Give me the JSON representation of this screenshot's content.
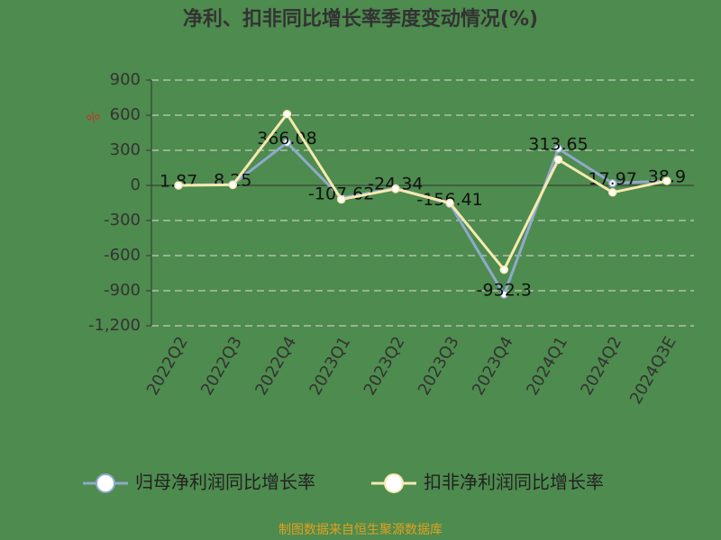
{
  "chart_data": {
    "type": "line",
    "title": "净利、扣非同比增长率季度变动情况(%)",
    "y_unit": "%",
    "source": "制图数据来自恒生聚源数据库",
    "categories": [
      "2022Q2",
      "2022Q3",
      "2022Q4",
      "2023Q1",
      "2023Q2",
      "2023Q3",
      "2023Q4",
      "2024Q1",
      "2024Q2",
      "2024Q3E"
    ],
    "series": [
      {
        "name": "归母净利润同比增长率",
        "color": "#8fa9cc",
        "values": [
          1.87,
          8.25,
          366.08,
          -107.62,
          -24.34,
          -156.41,
          -932.3,
          313.65,
          17.97,
          38.9
        ],
        "show_labels": true
      },
      {
        "name": "扣非净利润同比增长率",
        "color": "#f7e9b0",
        "values": [
          0,
          5,
          610,
          -120,
          -30,
          -150,
          -720,
          220,
          -60,
          38
        ],
        "show_labels": false
      }
    ],
    "ylim": [
      -1200,
      900
    ],
    "yticks": [
      900,
      600,
      300,
      0,
      -300,
      -600,
      -900,
      {
        "value": -1200,
        "label": "-1,200"
      }
    ],
    "grid": true
  }
}
